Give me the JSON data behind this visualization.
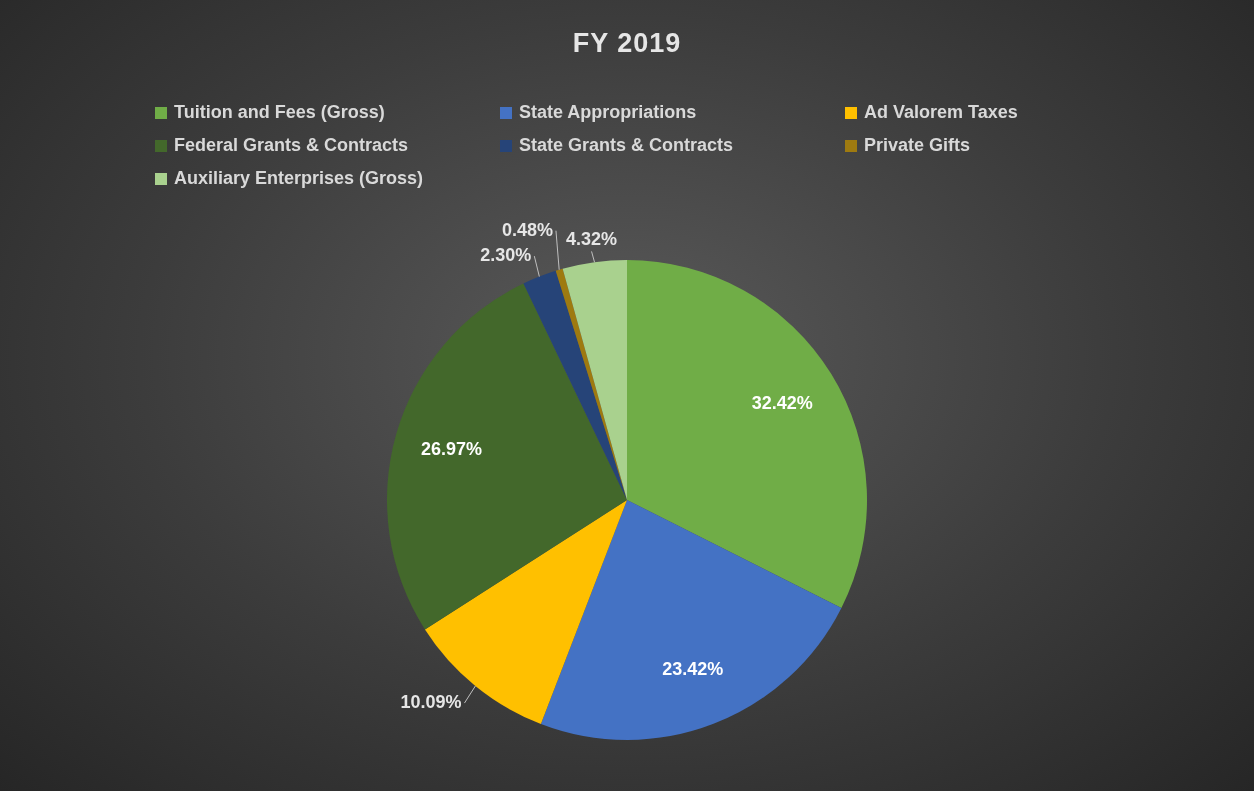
{
  "chart_data": {
    "type": "pie",
    "title": "FY 2019",
    "categories": [
      "Tuition and Fees (Gross)",
      "State Appropriations",
      "Ad Valorem Taxes",
      "Federal Grants & Contracts",
      "State Grants & Contracts",
      "Private Gifts",
      "Auxiliary Enterprises (Gross)"
    ],
    "values": [
      32.42,
      23.42,
      10.09,
      26.97,
      2.3,
      0.48,
      4.32
    ],
    "colors": [
      "#70ad47",
      "#4472c4",
      "#ffc000",
      "#43682b",
      "#264478",
      "#9e7a10",
      "#a9d18e"
    ],
    "value_labels": [
      "32.42%",
      "23.42%",
      "10.09%",
      "26.97%",
      "2.30%",
      "0.48%",
      "4.32%"
    ],
    "legend": "top"
  }
}
